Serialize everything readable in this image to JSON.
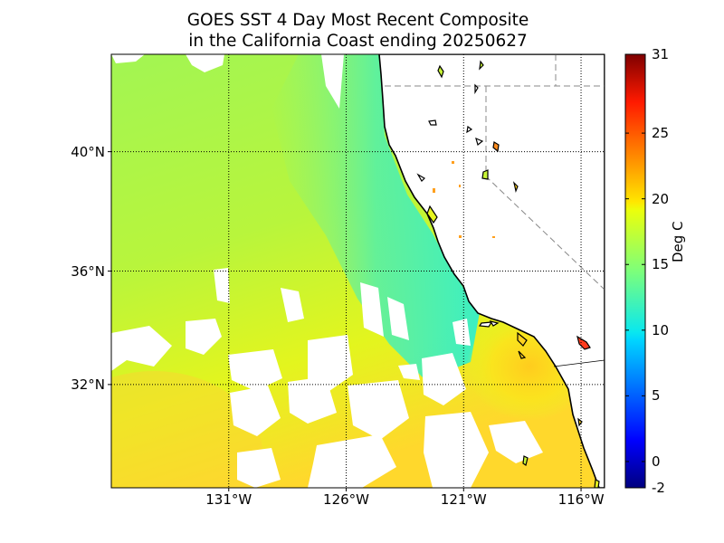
{
  "title_line1": "GOES SST 4 Day Most Recent Composite",
  "title_line2": "in the California Coast ending 20250627",
  "lat_labels": [
    {
      "text": "40°N",
      "lat": 40
    },
    {
      "text": "36°N",
      "lat": 36
    },
    {
      "text": "32°N",
      "lat": 32
    }
  ],
  "lon_labels": [
    {
      "text": "131°W",
      "lon": -131
    },
    {
      "text": "126°W",
      "lon": -126
    },
    {
      "text": "121°W",
      "lon": -121
    },
    {
      "text": "116°W",
      "lon": -116
    }
  ],
  "map_extent": {
    "lon_min": -136,
    "lon_max": -115,
    "lat_min": 28.2,
    "lat_max": 43.1
  },
  "colorbar": {
    "label": "Deg C",
    "min": -2,
    "max": 31,
    "ticks": [
      "-2",
      "0",
      "5",
      "10",
      "15",
      "20",
      "25",
      "31"
    ],
    "tick_values": [
      -2,
      0,
      5,
      10,
      15,
      20,
      25,
      31
    ],
    "colormap": "jet"
  },
  "colors": {
    "land": "#ffffff",
    "coastline": "#000000",
    "state_border": "#888888",
    "graticule": "#000000",
    "sst_north_offshore": "#9cf55a",
    "sst_nearshore": "#44f0b4",
    "sst_southern_bight": "#ffd21e",
    "sst_southwest": "#ffdc32"
  }
}
